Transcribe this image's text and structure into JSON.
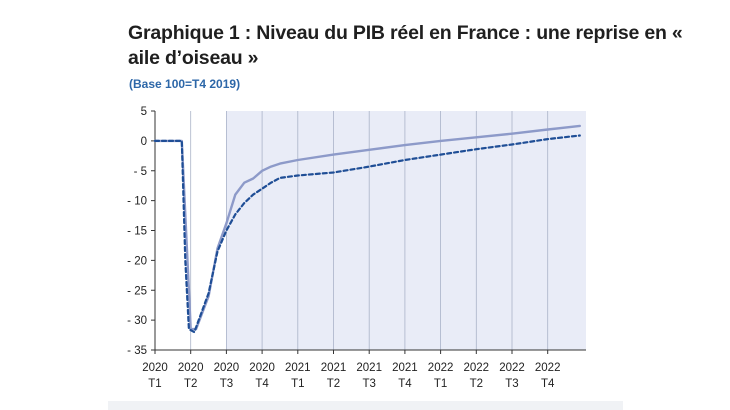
{
  "chart_data": {
    "type": "line",
    "title": "Graphique 1 : Niveau du PIB réel en France : une reprise en « aile d’oiseau »",
    "subtitle": "(Base 100=T4 2019)",
    "xlabel": "",
    "ylabel": "",
    "ylim": [
      -35,
      5
    ],
    "yticks": [
      5,
      0,
      -5,
      -10,
      -15,
      -20,
      -25,
      -30,
      -35
    ],
    "ytick_labels": [
      "5",
      "0",
      "- 5",
      "- 10",
      "- 15",
      "- 20",
      "- 25",
      "- 30",
      "- 35"
    ],
    "xticks": [
      {
        "year": "2020",
        "quarter": "T1"
      },
      {
        "year": "2020",
        "quarter": "T2"
      },
      {
        "year": "2020",
        "quarter": "T3"
      },
      {
        "year": "2020",
        "quarter": "T4"
      },
      {
        "year": "2021",
        "quarter": "T1"
      },
      {
        "year": "2021",
        "quarter": "T2"
      },
      {
        "year": "2021",
        "quarter": "T3"
      },
      {
        "year": "2021",
        "quarter": "T4"
      },
      {
        "year": "2022",
        "quarter": "T1"
      },
      {
        "year": "2022",
        "quarter": "T2"
      },
      {
        "year": "2022",
        "quarter": "T3"
      },
      {
        "year": "2022",
        "quarter": "T4"
      }
    ],
    "shaded_region_start": "2020 T3",
    "grid": true,
    "series": [
      {
        "style": "solid",
        "color": "#8d9ac9",
        "points": [
          [
            0,
            0
          ],
          [
            0.5,
            0
          ],
          [
            0.75,
            0
          ],
          [
            0.95,
            -25
          ],
          [
            1.0,
            -31.5
          ],
          [
            1.15,
            -31.5
          ],
          [
            1.5,
            -26
          ],
          [
            1.75,
            -18
          ],
          [
            2.0,
            -13.8
          ],
          [
            2.25,
            -9
          ],
          [
            2.5,
            -7
          ],
          [
            2.75,
            -6.3
          ],
          [
            3.0,
            -5
          ],
          [
            3.25,
            -4.3
          ],
          [
            3.5,
            -3.8
          ],
          [
            4.0,
            -3.2
          ],
          [
            5.0,
            -2.3
          ],
          [
            6.0,
            -1.5
          ],
          [
            7.0,
            -0.7
          ],
          [
            8.0,
            0
          ],
          [
            9.0,
            0.6
          ],
          [
            10.0,
            1.2
          ],
          [
            11.0,
            1.9
          ],
          [
            11.9,
            2.5
          ]
        ]
      },
      {
        "style": "dashed",
        "color": "#1f4e96",
        "points": [
          [
            0,
            0
          ],
          [
            0.5,
            0
          ],
          [
            0.75,
            0
          ],
          [
            0.85,
            -20
          ],
          [
            0.95,
            -31.5
          ],
          [
            1.1,
            -32
          ],
          [
            1.5,
            -25.5
          ],
          [
            1.75,
            -18.5
          ],
          [
            2.0,
            -15
          ],
          [
            2.25,
            -12.3
          ],
          [
            2.5,
            -10.4
          ],
          [
            2.75,
            -9
          ],
          [
            3.0,
            -8
          ],
          [
            3.25,
            -7
          ],
          [
            3.5,
            -6.2
          ],
          [
            4.0,
            -5.8
          ],
          [
            5.0,
            -5.3
          ],
          [
            6.0,
            -4.3
          ],
          [
            7.0,
            -3.2
          ],
          [
            8.0,
            -2.3
          ],
          [
            9.0,
            -1.4
          ],
          [
            10.0,
            -0.6
          ],
          [
            11.0,
            0.3
          ],
          [
            11.9,
            0.9
          ]
        ]
      }
    ]
  }
}
